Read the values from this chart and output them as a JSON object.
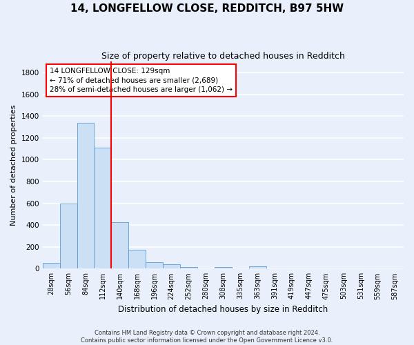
{
  "title": "14, LONGFELLOW CLOSE, REDDITCH, B97 5HW",
  "subtitle": "Size of property relative to detached houses in Redditch",
  "xlabel": "Distribution of detached houses by size in Redditch",
  "ylabel": "Number of detached properties",
  "footnote": "Contains HM Land Registry data © Crown copyright and database right 2024.\nContains public sector information licensed under the Open Government Licence v3.0.",
  "bin_labels": [
    "28sqm",
    "56sqm",
    "84sqm",
    "112sqm",
    "140sqm",
    "168sqm",
    "196sqm",
    "224sqm",
    "252sqm",
    "280sqm",
    "308sqm",
    "335sqm",
    "363sqm",
    "391sqm",
    "419sqm",
    "447sqm",
    "475sqm",
    "503sqm",
    "531sqm",
    "559sqm",
    "587sqm"
  ],
  "bar_heights": [
    50,
    598,
    1340,
    1110,
    425,
    170,
    60,
    40,
    15,
    0,
    15,
    0,
    20,
    0,
    0,
    0,
    0,
    0,
    0,
    0,
    0
  ],
  "bar_color": "#cce0f5",
  "bar_edge_color": "#5b9bd5",
  "vline_color": "red",
  "vline_x": 3.5,
  "annotation_line1": "14 LONGFELLOW CLOSE: 129sqm",
  "annotation_line2": "← 71% of detached houses are smaller (2,689)",
  "annotation_line3": "28% of semi-detached houses are larger (1,062) →",
  "annotation_box_color": "white",
  "annotation_box_edge_color": "red",
  "ylim": [
    0,
    1900
  ],
  "yticks": [
    0,
    200,
    400,
    600,
    800,
    1000,
    1200,
    1400,
    1600,
    1800
  ],
  "background_color": "#eaf0fb",
  "grid_color": "#ffffff",
  "title_fontsize": 11,
  "subtitle_fontsize": 9,
  "xlabel_fontsize": 8.5,
  "ylabel_fontsize": 8,
  "tick_fontsize": 7,
  "annotation_fontsize": 7.5,
  "footnote_fontsize": 6
}
